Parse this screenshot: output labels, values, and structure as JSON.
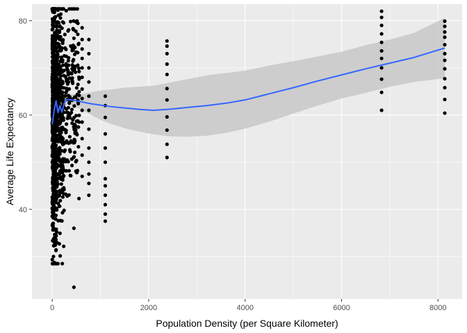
{
  "chart_data": {
    "type": "scatter",
    "xlabel": "Population Density (per Square Kilometer)",
    "ylabel": "Average Life Expectancy",
    "xlim": [
      -420,
      8500
    ],
    "ylim": [
      21.0,
      83.5
    ],
    "x_ticks": [
      0,
      2000,
      4000,
      6000,
      8000
    ],
    "x_tick_labels": [
      "0",
      "2000",
      "4000",
      "6000",
      "8000"
    ],
    "y_ticks": [
      40,
      60,
      80
    ],
    "y_tick_labels": [
      "40",
      "60",
      "80"
    ],
    "grid": true,
    "panel_color": "#ebebeb",
    "grid_color": "#ffffff",
    "point_color": "#000000",
    "smooth_color": "#3366ff",
    "band_color": "#c8c8c8",
    "outlier_columns": [
      {
        "x": 620,
        "y": [
          47.0,
          51.5,
          55.0,
          58.5,
          61.0,
          63.5,
          65.5,
          68.0,
          70.0,
          72.0,
          74.0,
          76.0,
          78.5
        ]
      },
      {
        "x": 760,
        "y": [
          43.0,
          45.5,
          47.5,
          50.0,
          53.0,
          57.0,
          61.0,
          64.0,
          67.0,
          70.0,
          73.0,
          76.0
        ]
      },
      {
        "x": 1100,
        "y": [
          37.5,
          39.0,
          41.0,
          43.0,
          45.0,
          46.5,
          50.0,
          53.0,
          56.0,
          59.5,
          62.0,
          64.0
        ]
      },
      {
        "x": 2380,
        "y": [
          51.0,
          53.8,
          56.8,
          59.6,
          63.2,
          65.6,
          68.6,
          70.8,
          73.0,
          74.6,
          75.7
        ]
      },
      {
        "x": 6830,
        "y": [
          61.0,
          64.8,
          67.6,
          70.0,
          72.0,
          73.6,
          75.4,
          77.2,
          79.0,
          80.7,
          82.0
        ]
      },
      {
        "x": 8140,
        "y": [
          60.4,
          63.3,
          65.8,
          67.7,
          69.8,
          71.6,
          73.0,
          74.9,
          76.5,
          77.6,
          78.8,
          79.9
        ]
      },
      {
        "x": 450,
        "y": [
          23.5,
          36.0
        ]
      }
    ],
    "dense_cluster": {
      "x_min": 0,
      "x_max": 560,
      "y_min": 28.5,
      "y_max": 82.5,
      "point_count": 1200,
      "description": "dense point mass at low densities"
    },
    "smooth": {
      "x": [
        0,
        40,
        80,
        120,
        160,
        200,
        250,
        300,
        400,
        600,
        800,
        1000,
        1200,
        1500,
        1800,
        2100,
        2400,
        2800,
        3200,
        3600,
        4000,
        4500,
        5000,
        5500,
        6000,
        6500,
        7000,
        7500,
        8140
      ],
      "y": [
        58.0,
        61.0,
        63.0,
        60.5,
        62.0,
        60.6,
        62.5,
        63.3,
        63.2,
        62.8,
        62.4,
        62.1,
        61.8,
        61.5,
        61.2,
        61.0,
        61.2,
        61.6,
        62.0,
        62.5,
        63.2,
        64.5,
        65.8,
        67.2,
        68.5,
        69.8,
        71.0,
        72.2,
        74.2
      ],
      "lower": [
        56.0,
        59.8,
        62.0,
        59.5,
        61.0,
        59.6,
        61.6,
        62.2,
        62.0,
        61.2,
        60.0,
        59.0,
        58.2,
        57.2,
        56.5,
        55.9,
        55.5,
        55.4,
        55.6,
        56.2,
        57.1,
        58.6,
        60.3,
        62.0,
        63.5,
        64.7,
        66.0,
        67.0,
        67.8
      ],
      "upper": [
        60.0,
        62.2,
        64.0,
        61.5,
        63.0,
        61.6,
        63.4,
        64.4,
        64.4,
        64.4,
        64.8,
        65.2,
        65.4,
        65.8,
        66.0,
        66.2,
        66.8,
        67.6,
        68.4,
        68.9,
        69.4,
        70.5,
        71.4,
        72.4,
        73.4,
        74.8,
        76.0,
        77.4,
        80.6
      ]
    }
  }
}
